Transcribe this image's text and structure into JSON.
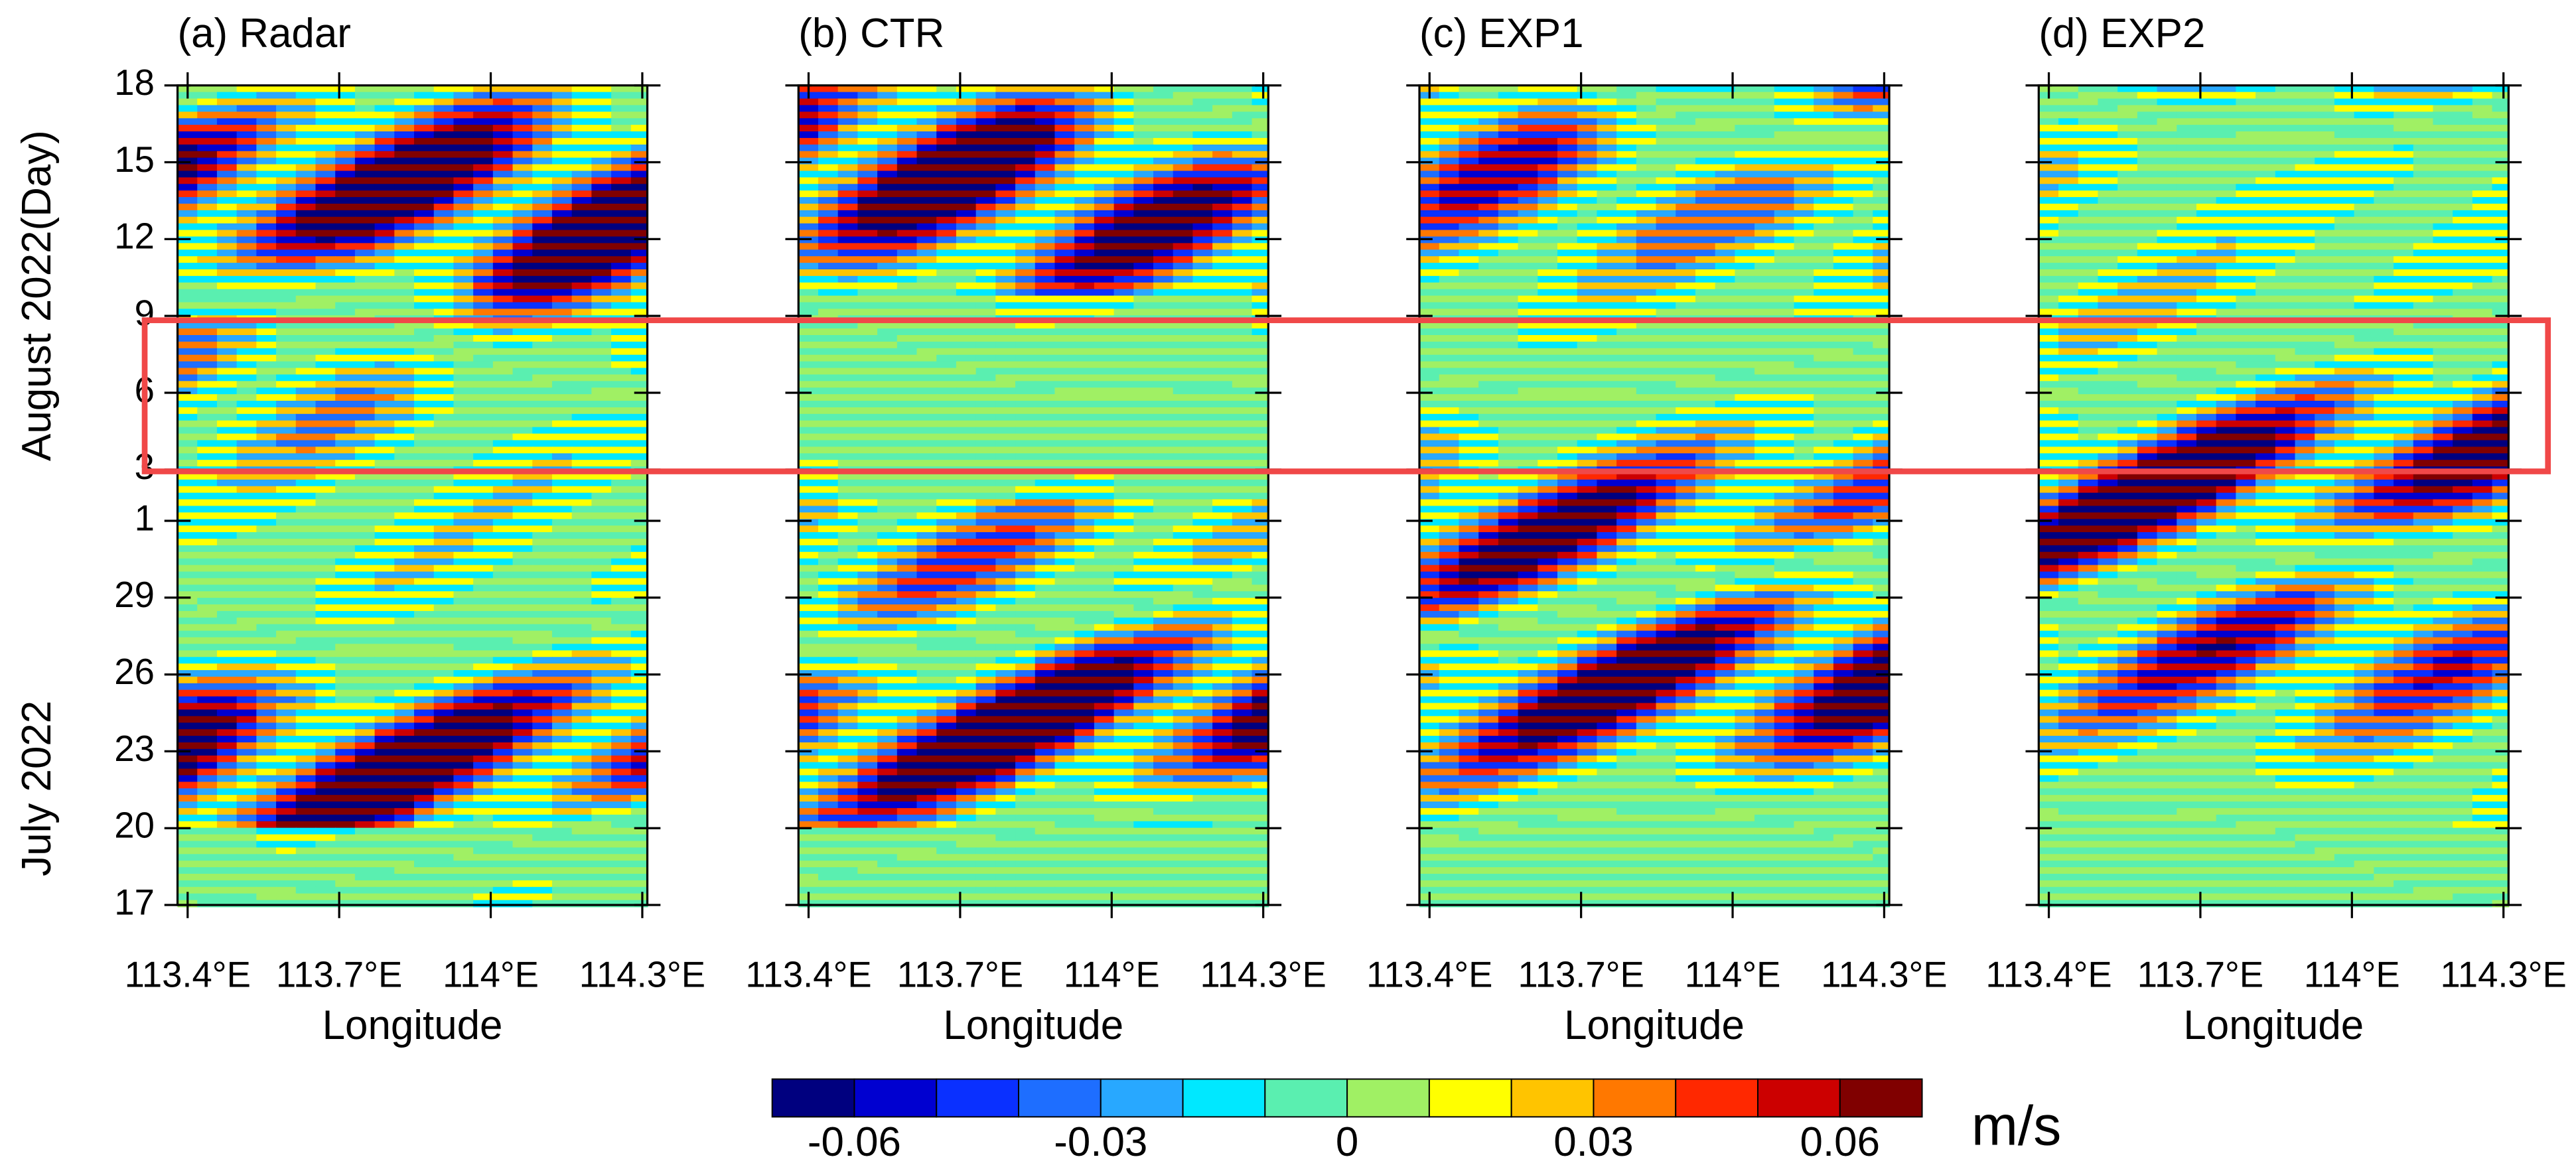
{
  "chart_data": [
    {
      "type": "heatmap",
      "title": "(a) Radar",
      "xlabel": "Longitude",
      "ylabels": [
        "August 2022(Day)",
        "July 2022"
      ],
      "xlim": [
        113.38,
        114.31
      ],
      "xticks": [
        {
          "value": 113.4,
          "label": "113.4°E"
        },
        {
          "value": 113.7,
          "label": "113.7°E"
        },
        {
          "value": 114,
          "label": "114°E"
        },
        {
          "value": 114.3,
          "label": "114.3°E"
        }
      ],
      "ylim": [
        "2022-07-17",
        "2022-08-18"
      ],
      "yticks": [
        {
          "value": "2022-07-17",
          "label": "17"
        },
        {
          "value": "2022-07-20",
          "label": "20"
        },
        {
          "value": "2022-07-23",
          "label": "23"
        },
        {
          "value": "2022-07-26",
          "label": "26"
        },
        {
          "value": "2022-07-29",
          "label": "29"
        },
        {
          "value": "2022-08-01",
          "label": "1"
        },
        {
          "value": "2022-08-03",
          "label": "3"
        },
        {
          "value": "2022-08-06",
          "label": "6"
        },
        {
          "value": "2022-08-09",
          "label": "9"
        },
        {
          "value": "2022-08-12",
          "label": "12"
        },
        {
          "value": "2022-08-15",
          "label": "15"
        },
        {
          "value": "2022-08-18",
          "label": "18"
        }
      ]
    },
    {
      "type": "heatmap",
      "title": "(b) CTR",
      "xlabel": "Longitude",
      "xlim": [
        113.38,
        114.31
      ],
      "xticks": [
        {
          "value": 113.4,
          "label": "113.4°E"
        },
        {
          "value": 113.7,
          "label": "113.7°E"
        },
        {
          "value": 114,
          "label": "114°E"
        },
        {
          "value": 114.3,
          "label": "114.3°E"
        }
      ]
    },
    {
      "type": "heatmap",
      "title": "(c) EXP1",
      "xlabel": "Longitude",
      "xlim": [
        113.38,
        114.31
      ],
      "xticks": [
        {
          "value": 113.4,
          "label": "113.4°E"
        },
        {
          "value": 113.7,
          "label": "113.7°E"
        },
        {
          "value": 114,
          "label": "114°E"
        },
        {
          "value": 114.3,
          "label": "114.3°E"
        }
      ]
    },
    {
      "type": "heatmap",
      "title": "(d) EXP2",
      "xlabel": "Longitude",
      "xlim": [
        113.38,
        114.31
      ],
      "xticks": [
        {
          "value": 113.4,
          "label": "113.4°E"
        },
        {
          "value": 113.7,
          "label": "113.7°E"
        },
        {
          "value": 114,
          "label": "114°E"
        },
        {
          "value": 114.3,
          "label": "114.3°E"
        }
      ]
    }
  ],
  "colorbar": {
    "colors": [
      "#00007f",
      "#0000d0",
      "#0a30ff",
      "#1e6eff",
      "#28a8ff",
      "#00e8ff",
      "#5aefb0",
      "#a0f064",
      "#ffff00",
      "#ffc400",
      "#ff7800",
      "#ff2800",
      "#cc0000",
      "#800000"
    ],
    "lim": [
      -0.07,
      0.07
    ],
    "ticks": [
      -0.06,
      -0.03,
      0,
      0.03,
      0.06
    ],
    "unit": "m/s"
  }
}
